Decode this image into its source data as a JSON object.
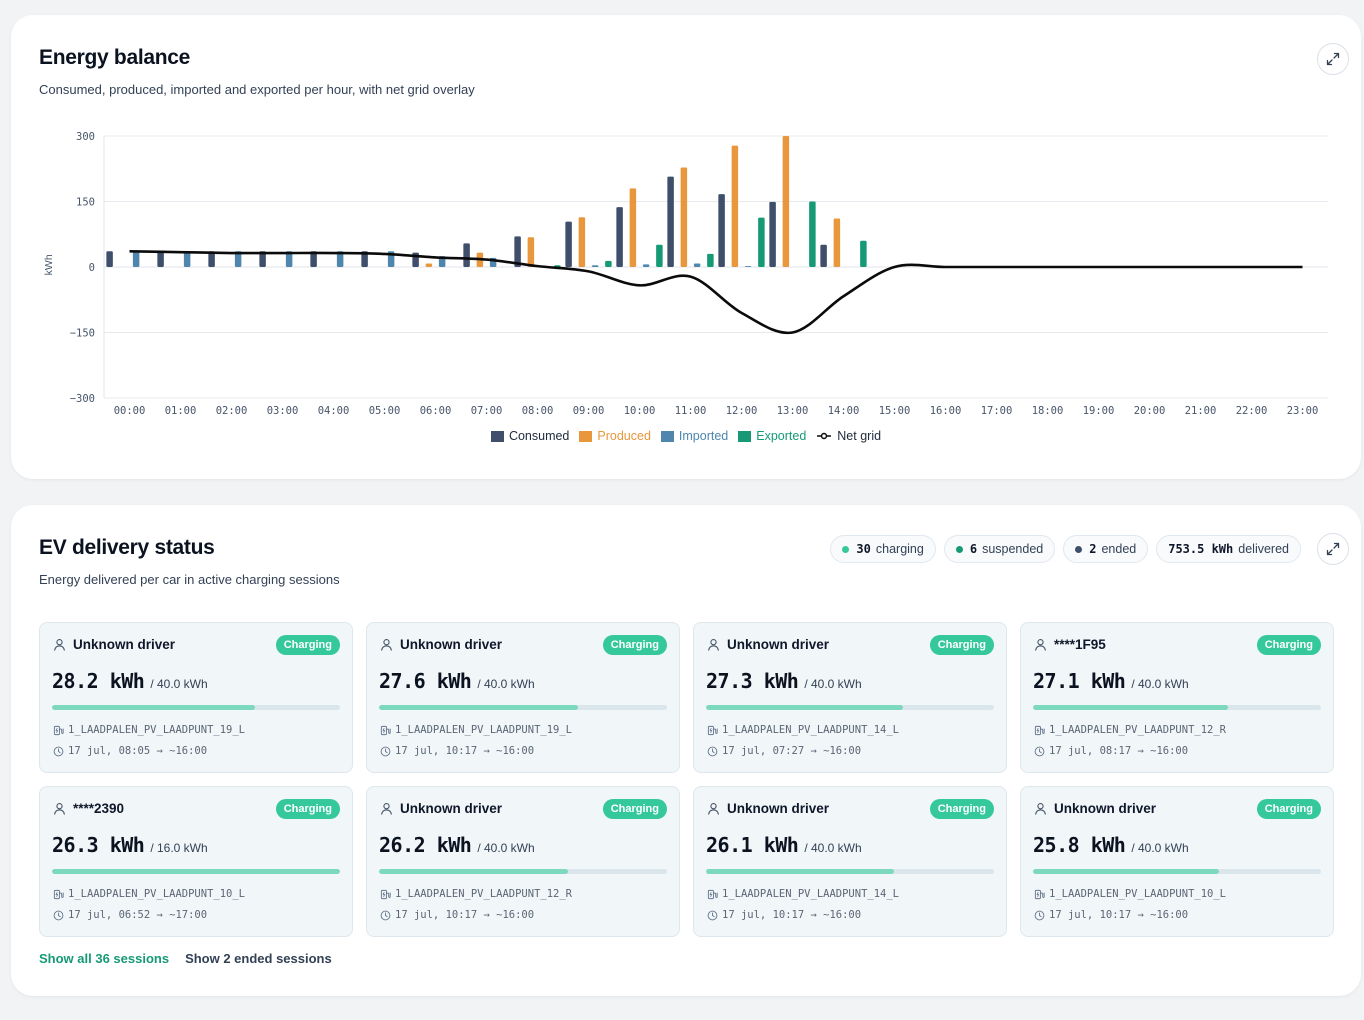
{
  "energy": {
    "title": "Energy balance",
    "subtitle": "Consumed, produced, imported and exported per hour, with net grid overlay",
    "expand_icon": "expand-icon"
  },
  "chart_data": {
    "type": "bar",
    "title": "Energy balance",
    "ylabel": "kWh",
    "ylim": [
      -300,
      300
    ],
    "yticks": [
      300,
      150,
      0,
      -150,
      -300
    ],
    "grid": true,
    "legend_position": "bottom-center",
    "categories": [
      "00:00",
      "01:00",
      "02:00",
      "03:00",
      "04:00",
      "05:00",
      "06:00",
      "07:00",
      "08:00",
      "09:00",
      "10:00",
      "11:00",
      "12:00",
      "13:00",
      "14:00",
      "15:00",
      "16:00",
      "17:00",
      "18:00",
      "19:00",
      "20:00",
      "21:00",
      "22:00",
      "23:00"
    ],
    "series": [
      {
        "name": "Consumed",
        "kind": "bar",
        "color": "#3f4f6b",
        "values": [
          36,
          36,
          36,
          36,
          36,
          36,
          33,
          54,
          70,
          104,
          137,
          207,
          167,
          149,
          51,
          0,
          0,
          0,
          0,
          0,
          0,
          0,
          0,
          0
        ]
      },
      {
        "name": "Produced",
        "kind": "bar",
        "color": "#e8973d",
        "values": [
          0,
          0,
          0,
          0,
          0,
          0,
          8,
          33,
          68,
          114,
          180,
          228,
          278,
          300,
          111,
          0,
          0,
          0,
          0,
          0,
          0,
          0,
          0,
          0
        ]
      },
      {
        "name": "Imported",
        "kind": "bar",
        "color": "#4e86ad",
        "values": [
          36,
          36,
          36,
          36,
          36,
          36,
          25,
          21,
          2,
          4,
          6,
          8,
          2,
          0,
          0,
          0,
          0,
          0,
          0,
          0,
          0,
          0,
          0,
          0
        ]
      },
      {
        "name": "Exported",
        "kind": "bar",
        "color": "#169a75",
        "values": [
          0,
          0,
          0,
          0,
          0,
          0,
          0,
          0,
          4,
          14,
          51,
          30,
          113,
          150,
          60,
          0,
          0,
          0,
          0,
          0,
          0,
          0,
          0,
          0
        ]
      },
      {
        "name": "Net grid",
        "kind": "line",
        "color": "#0b0b0b",
        "values": [
          36,
          34,
          32,
          32,
          32,
          30,
          22,
          17,
          2,
          -10,
          -42,
          -22,
          -105,
          -150,
          -67,
          0,
          0,
          0,
          0,
          0,
          0,
          0,
          0,
          0
        ]
      }
    ]
  },
  "ev": {
    "title": "EV delivery status",
    "subtitle": "Energy delivered per car in active charging sessions",
    "pills": [
      {
        "value": "30",
        "label": "charging",
        "color": "#34c89a"
      },
      {
        "value": "6",
        "label": "suspended",
        "color": "#169a75"
      },
      {
        "value": "2",
        "label": "ended",
        "color": "#3f4f6b"
      },
      {
        "value": "753.5 kWh",
        "label": "delivered",
        "color": ""
      }
    ],
    "sessions": [
      {
        "driver": "Unknown driver",
        "status": "Charging",
        "kwh": "28.2 kWh",
        "cap": "/ 40.0 kWh",
        "progress": 0.705,
        "point": "1_LAADPALEN_PV_LAADPUNT_19_L",
        "time": "17 jul, 08:05 → ~16:00"
      },
      {
        "driver": "Unknown driver",
        "status": "Charging",
        "kwh": "27.6 kWh",
        "cap": "/ 40.0 kWh",
        "progress": 0.69,
        "point": "1_LAADPALEN_PV_LAADPUNT_19_L",
        "time": "17 jul, 10:17 → ~16:00"
      },
      {
        "driver": "Unknown driver",
        "status": "Charging",
        "kwh": "27.3 kWh",
        "cap": "/ 40.0 kWh",
        "progress": 0.6825,
        "point": "1_LAADPALEN_PV_LAADPUNT_14_L",
        "time": "17 jul, 07:27 → ~16:00"
      },
      {
        "driver": "****1F95",
        "status": "Charging",
        "kwh": "27.1 kWh",
        "cap": "/ 40.0 kWh",
        "progress": 0.6775,
        "point": "1_LAADPALEN_PV_LAADPUNT_12_R",
        "time": "17 jul, 08:17 → ~16:00"
      },
      {
        "driver": "****2390",
        "status": "Charging",
        "kwh": "26.3 kWh",
        "cap": "/ 16.0 kWh",
        "progress": 1.0,
        "point": "1_LAADPALEN_PV_LAADPUNT_10_L",
        "time": "17 jul, 06:52 → ~17:00"
      },
      {
        "driver": "Unknown driver",
        "status": "Charging",
        "kwh": "26.2 kWh",
        "cap": "/ 40.0 kWh",
        "progress": 0.655,
        "point": "1_LAADPALEN_PV_LAADPUNT_12_R",
        "time": "17 jul, 10:17 → ~16:00"
      },
      {
        "driver": "Unknown driver",
        "status": "Charging",
        "kwh": "26.1 kWh",
        "cap": "/ 40.0 kWh",
        "progress": 0.6525,
        "point": "1_LAADPALEN_PV_LAADPUNT_14_L",
        "time": "17 jul, 10:17 → ~16:00"
      },
      {
        "driver": "Unknown driver",
        "status": "Charging",
        "kwh": "25.8 kWh",
        "cap": "/ 40.0 kWh",
        "progress": 0.645,
        "point": "1_LAADPALEN_PV_LAADPUNT_10_L",
        "time": "17 jul, 10:17 → ~16:00"
      }
    ],
    "show_all": "Show all 36 sessions",
    "show_ended": "Show 2 ended sessions",
    "link_color": "#169a75"
  }
}
